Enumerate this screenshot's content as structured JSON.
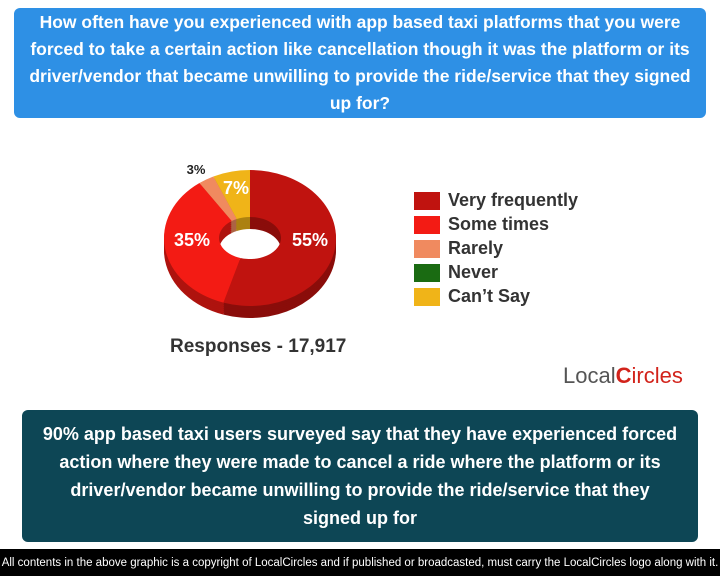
{
  "question": "How often have you experienced with app based taxi platforms that you were forced to take a certain action like cancellation though it was the platform or its driver/vendor that became unwilling to provide the ride/service that they signed up for?",
  "chart_data": {
    "type": "pie",
    "donut": true,
    "categories": [
      "Very frequently",
      "Some times",
      "Rarely",
      "Never",
      "Can't Say"
    ],
    "values": [
      55,
      35,
      3,
      0,
      7
    ],
    "labels": [
      "55%",
      "35%",
      "3%",
      "",
      "7%"
    ],
    "colors": [
      "#c0130f",
      "#f31b14",
      "#f08a5f",
      "#1a6b12",
      "#f0b418"
    ],
    "legend_position": "right"
  },
  "legend": [
    "Very frequently",
    "Some times",
    "Rarely",
    "Never",
    "Can’t Say"
  ],
  "responses": "Responses - 17,917",
  "logo": "LocalCircles",
  "summary": "90% app based taxi users surveyed say that they have experienced forced action where they were made to cancel a ride where the platform or its driver/vendor became unwilling to provide the ride/service that they signed up for",
  "footer": "All contents in the above graphic is a copyright of LocalCircles and if published or broadcasted, must carry the LocalCircles logo along with it."
}
